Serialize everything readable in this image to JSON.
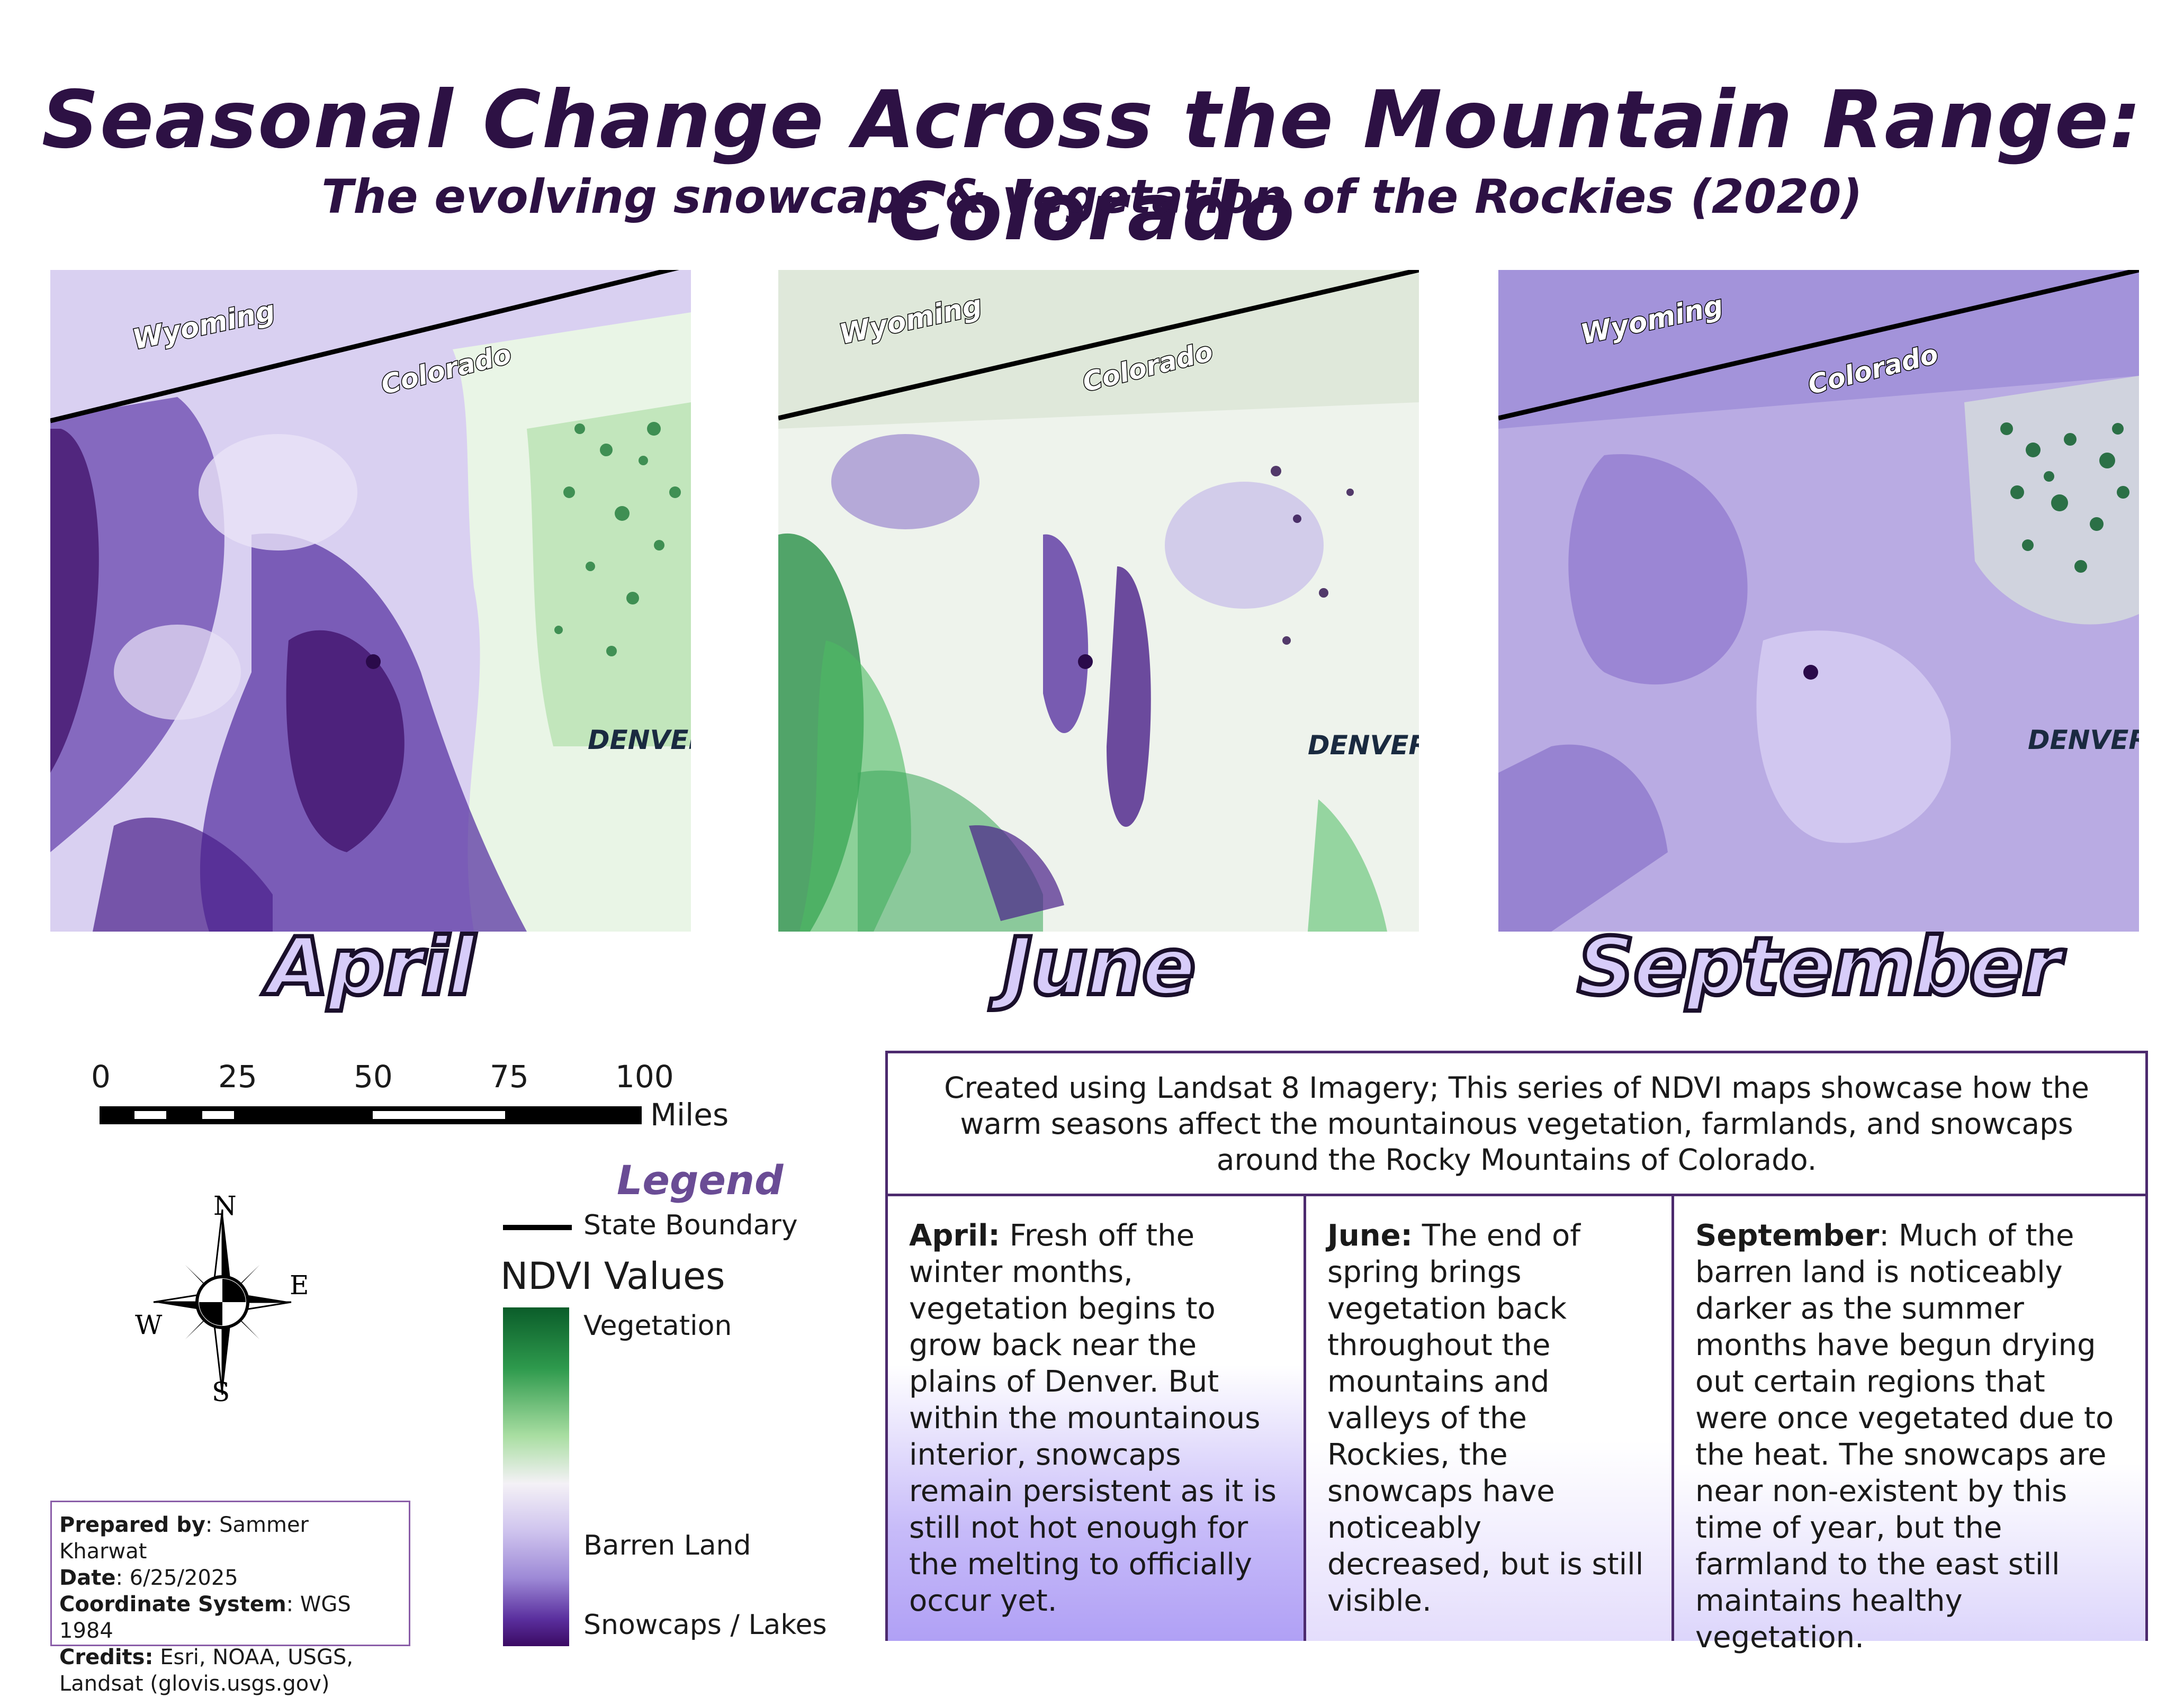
{
  "title": "Seasonal Change Across the Mountain Range: Colorado",
  "subtitle": "The evolving snowcaps & vegetation of the Rockies (2020)",
  "maps": [
    {
      "month": "April",
      "labels": {
        "north": "Wyoming",
        "south": "Colorado",
        "city": "DENVER"
      }
    },
    {
      "month": "June",
      "labels": {
        "north": "Wyoming",
        "south": "Colorado",
        "city": "DENVER"
      }
    },
    {
      "month": "September",
      "labels": {
        "north": "Wyoming",
        "south": "Colorado",
        "city": "DENVER"
      }
    }
  ],
  "scale_bar": {
    "ticks": [
      "0",
      "25",
      "50",
      "75",
      "100"
    ],
    "unit": "Miles"
  },
  "compass": {
    "n": "N",
    "s": "S",
    "e": "E",
    "w": "W"
  },
  "legend": {
    "title": "Legend",
    "state_boundary": "State Boundary",
    "ndvi_title": "NDVI Values",
    "vegetation": "Vegetation",
    "barren": "Barren Land",
    "snow": "Snowcaps / Lakes",
    "colors": {
      "vegetation": "#0b5d2a",
      "mid": "#f4f1f6",
      "barren": "#b4a6e0",
      "snow": "#3b0a63"
    }
  },
  "credits": {
    "prepared_label": "Prepared by",
    "prepared_value": ": Sammer Kharwat",
    "date_label": "Date",
    "date_value": ": 6/25/2025",
    "coord_label": "Coordinate System",
    "coord_value": ": WGS 1984",
    "credits_label": "Credits:",
    "credits_value": " Esri, NOAA, USGS, Landsat (glovis.usgs.gov)"
  },
  "info": {
    "intro": "Created using Landsat 8 Imagery; This series of NDVI maps showcase how the warm seasons affect the mountainous vegetation, farmlands, and snowcaps around the Rocky Mountains of Colorado.",
    "april_label": "April:",
    "april_text": " Fresh off the winter months, vegetation begins to grow back near the plains of Denver. But within the mountainous interior, snowcaps remain persistent as it is still not hot enough for the melting to officially occur yet.",
    "june_label": "June:",
    "june_text": " The end of spring brings vegetation back throughout the mountains and valleys of the Rockies, the snowcaps have noticeably decreased, but is still visible.",
    "september_label": "September",
    "september_text": ": Much of the barren land is noticeably darker as the summer months have begun drying out certain regions that were once vegetated due to the heat. The snowcaps are near non-existent by this time of year, but the farmland to the east still maintains healthy vegetation."
  }
}
